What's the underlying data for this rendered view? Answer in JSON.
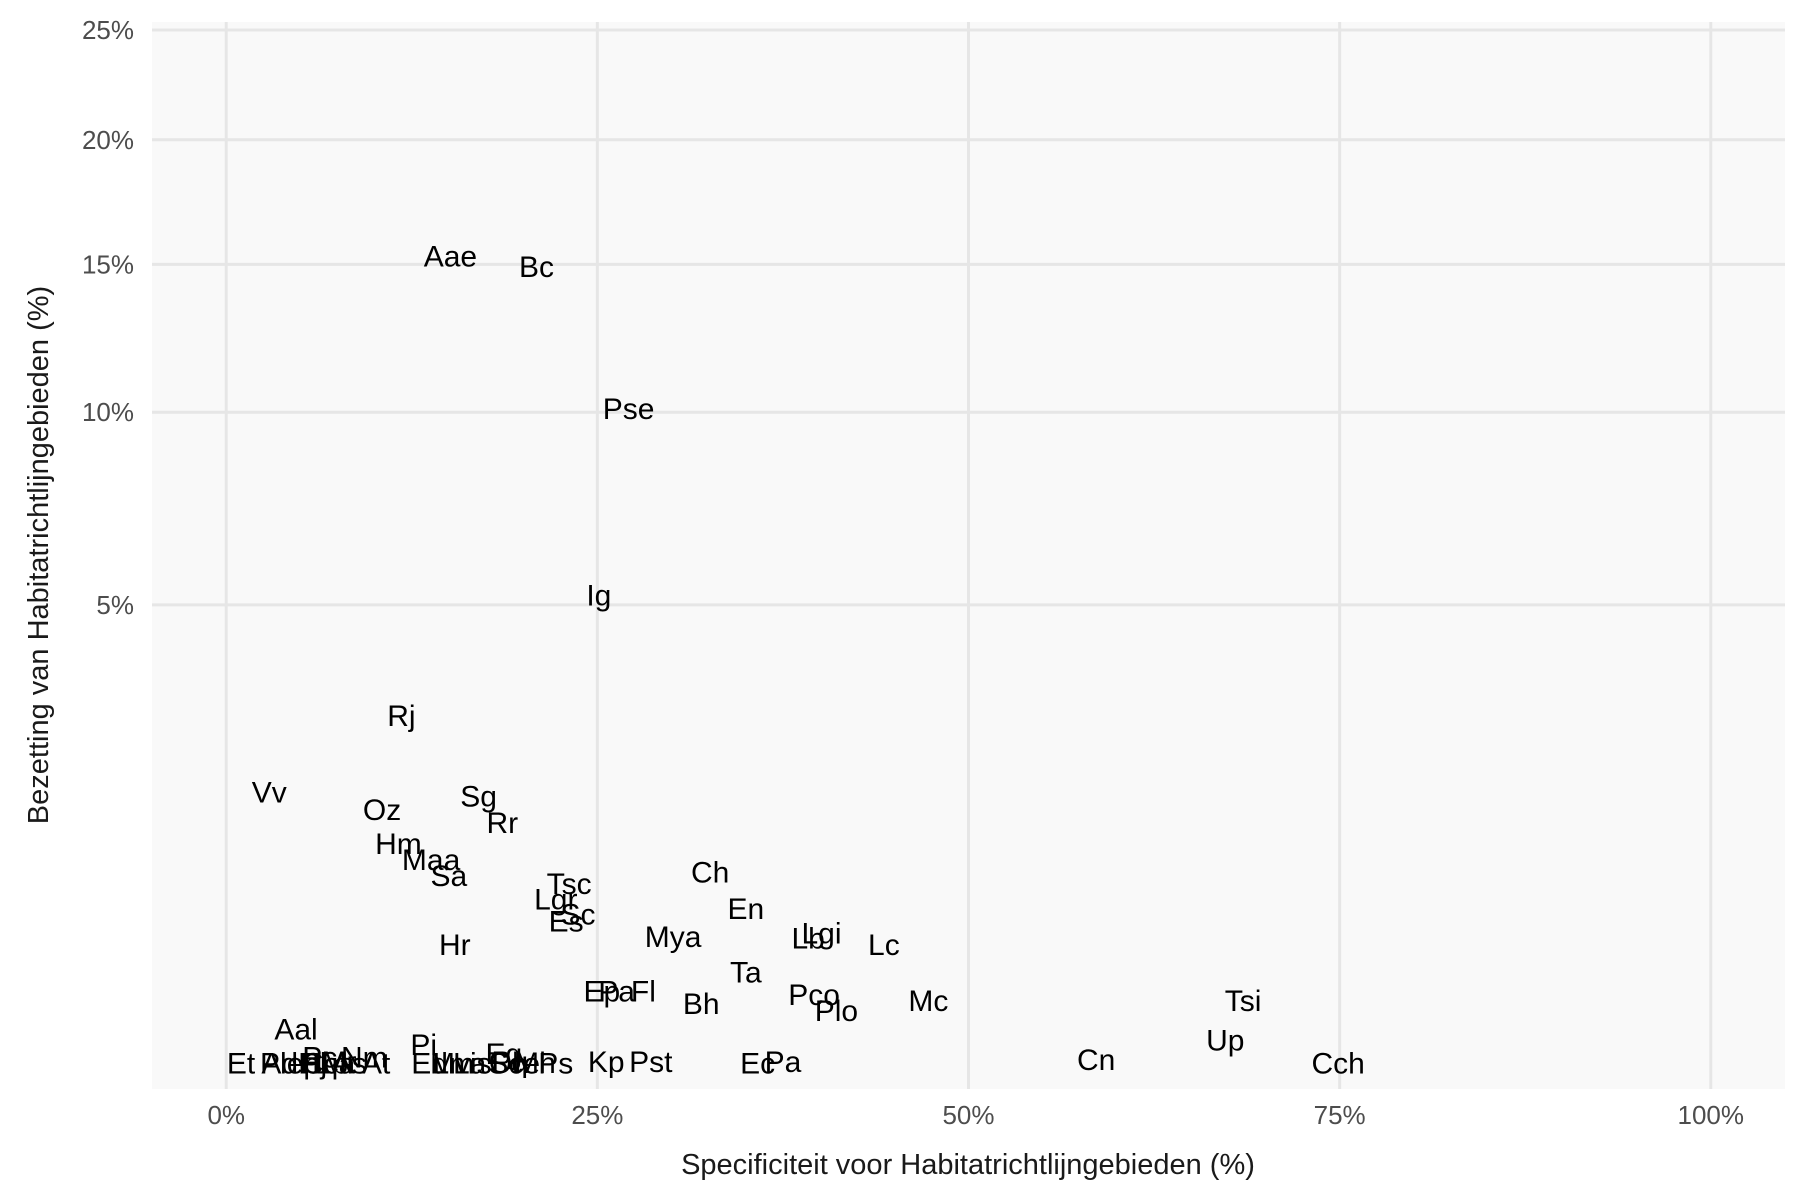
{
  "chart_data": {
    "type": "scatter",
    "xlabel": "Specificiteit voor Habitatrichtlijngebieden (%)",
    "ylabel": "Bezetting van Habitatrichtlijngebieden (%)",
    "x_ticks": [
      {
        "value": 0,
        "label": "0%"
      },
      {
        "value": 25,
        "label": "25%"
      },
      {
        "value": 50,
        "label": "50%"
      },
      {
        "value": 75,
        "label": "75%"
      },
      {
        "value": 100,
        "label": "100%"
      }
    ],
    "y_ticks": [
      {
        "value": 5,
        "label": "5%"
      },
      {
        "value": 10,
        "label": "10%"
      },
      {
        "value": 15,
        "label": "15%"
      },
      {
        "value": 20,
        "label": "20%"
      },
      {
        "value": 25,
        "label": "25%"
      }
    ],
    "y_scale": "sqrt",
    "xlim": [
      -5,
      105
    ],
    "ylim": [
      0,
      25
    ],
    "grid": true,
    "colors": {
      "panel": "#f9f9f9",
      "grid": "#e6e6e6",
      "label": "#000000"
    },
    "points": [
      {
        "label": "Aae",
        "x": 15.1,
        "y": 15.3
      },
      {
        "label": "Bc",
        "x": 20.9,
        "y": 14.9
      },
      {
        "label": "Pse",
        "x": 27.1,
        "y": 10.1
      },
      {
        "label": "Ig",
        "x": 25.1,
        "y": 5.2
      },
      {
        "label": "Rj",
        "x": 11.8,
        "y": 2.9
      },
      {
        "label": "Vv",
        "x": 2.9,
        "y": 1.78
      },
      {
        "label": "Sg",
        "x": 17.0,
        "y": 1.73
      },
      {
        "label": "Oz",
        "x": 10.5,
        "y": 1.56
      },
      {
        "label": "Rr",
        "x": 18.6,
        "y": 1.41
      },
      {
        "label": "Hm",
        "x": 11.6,
        "y": 1.18
      },
      {
        "label": "Maa",
        "x": 13.8,
        "y": 1.02
      },
      {
        "label": "Sa",
        "x": 15.0,
        "y": 0.87
      },
      {
        "label": "Ch",
        "x": 32.6,
        "y": 0.9
      },
      {
        "label": "Tsc",
        "x": 23.1,
        "y": 0.8
      },
      {
        "label": "Lgr",
        "x": 22.2,
        "y": 0.67
      },
      {
        "label": "En",
        "x": 35.0,
        "y": 0.6
      },
      {
        "label": "Sc",
        "x": 23.7,
        "y": 0.56
      },
      {
        "label": "Es",
        "x": 22.9,
        "y": 0.51
      },
      {
        "label": "Mya",
        "x": 30.1,
        "y": 0.41
      },
      {
        "label": "Lgi",
        "x": 40.1,
        "y": 0.43
      },
      {
        "label": "Lb",
        "x": 39.2,
        "y": 0.4
      },
      {
        "label": "Lc",
        "x": 44.3,
        "y": 0.36
      },
      {
        "label": "Hr",
        "x": 15.4,
        "y": 0.36
      },
      {
        "label": "Ta",
        "x": 35.0,
        "y": 0.22
      },
      {
        "label": "Ep",
        "x": 25.3,
        "y": 0.142
      },
      {
        "label": "Pa",
        "x": 26.3,
        "y": 0.142
      },
      {
        "label": "Fl",
        "x": 28.1,
        "y": 0.142
      },
      {
        "label": "Pco",
        "x": 39.6,
        "y": 0.13
      },
      {
        "label": "Bh",
        "x": 32.0,
        "y": 0.1
      },
      {
        "label": "Plo",
        "x": 41.1,
        "y": 0.081
      },
      {
        "label": "Mc",
        "x": 47.3,
        "y": 0.11
      },
      {
        "label": "Tsi",
        "x": 68.5,
        "y": 0.11
      },
      {
        "label": "Aal",
        "x": 4.7,
        "y": 0.038
      },
      {
        "label": "Up",
        "x": 67.3,
        "y": 0.0204
      },
      {
        "label": "Pi",
        "x": 13.3,
        "y": 0.0144
      },
      {
        "label": "Eg",
        "x": 18.7,
        "y": 0.0061
      },
      {
        "label": "Ol",
        "x": 18.7,
        "y": 0.0011
      },
      {
        "label": "Pq",
        "x": 19.1,
        "y": 0.0015
      },
      {
        "label": "Cn",
        "x": 58.6,
        "y": 0.0023
      },
      {
        "label": "Pc",
        "x": 6.3,
        "y": 0.0036
      },
      {
        "label": "Nm",
        "x": 9.3,
        "y": 0.0036
      },
      {
        "label": "Mr",
        "x": 7.6,
        "y": 0.0014
      },
      {
        "label": "Pa",
        "x": 37.5,
        "y": 0.0014
      },
      {
        "label": "Mh",
        "x": 20.8,
        "y": 0.0011
      },
      {
        "label": "Kp",
        "x": 25.6,
        "y": 0.0014
      },
      {
        "label": "Pst",
        "x": 28.6,
        "y": 0.0014
      },
      {
        "label": "La",
        "x": 16.4,
        "y": 0.001
      },
      {
        "label": "Ps",
        "x": 22.2,
        "y": 0.001
      },
      {
        "label": "Pj",
        "x": 5.9,
        "y": 0.001
      },
      {
        "label": "Mvis",
        "x": 15.8,
        "y": 0.001
      },
      {
        "label": "Ec",
        "x": 35.8,
        "y": 0.001
      },
      {
        "label": "Lm",
        "x": 15.3,
        "y": 0.001
      },
      {
        "label": "Ed",
        "x": 13.7,
        "y": 0.001
      },
      {
        "label": "Cch",
        "x": 74.9,
        "y": 0.001
      },
      {
        "label": "As",
        "x": 8.3,
        "y": 0.001
      },
      {
        "label": "Hl",
        "x": 5.8,
        "y": 0.001
      },
      {
        "label": "Lp",
        "x": 7.1,
        "y": 0.001
      },
      {
        "label": "Ad",
        "x": 3.6,
        "y": 0.001
      },
      {
        "label": "Sce",
        "x": 19.4,
        "y": 0.001
      },
      {
        "label": "Cca",
        "x": 6.9,
        "y": 0.001
      },
      {
        "label": "Plep",
        "x": 4.3,
        "y": 0.001
      },
      {
        "label": "Et",
        "x": 1.0,
        "y": 0.001
      },
      {
        "label": "At",
        "x": 10.1,
        "y": 0.001
      }
    ]
  }
}
